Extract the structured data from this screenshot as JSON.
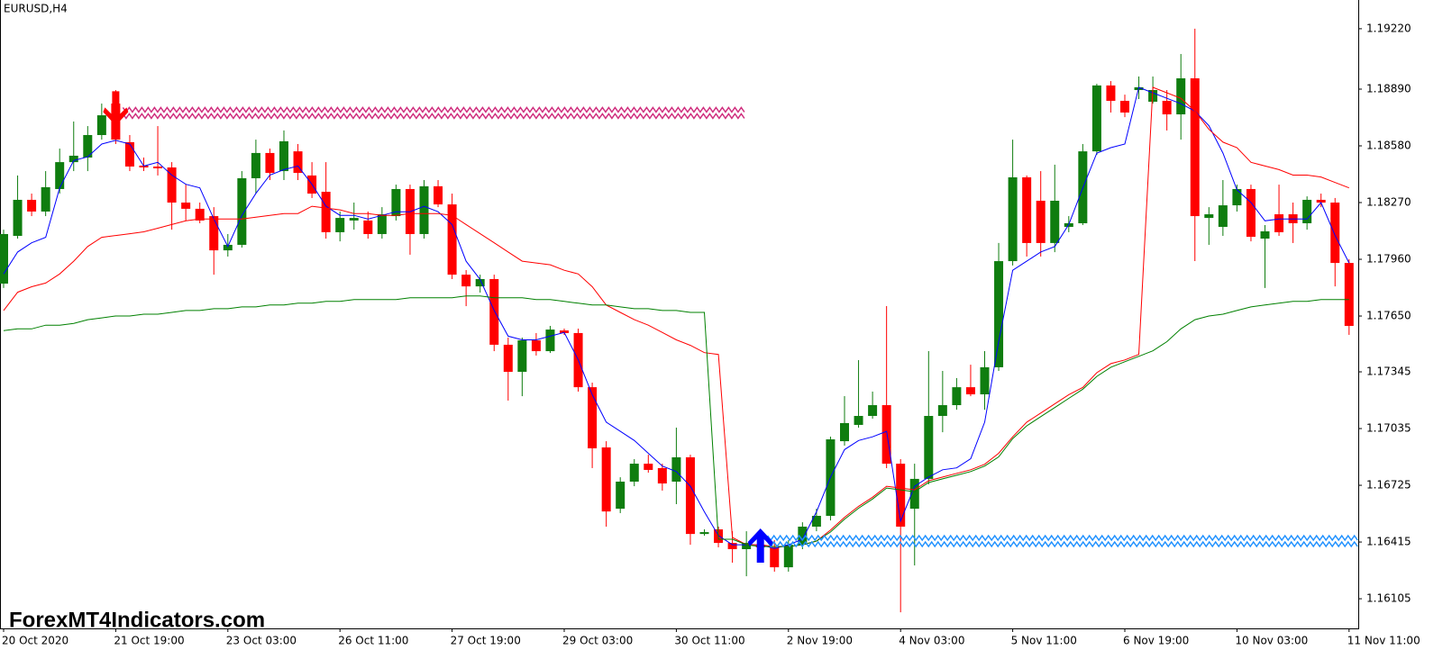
{
  "chart_data": {
    "type": "candlestick",
    "symbol": "EURUSD,H4",
    "watermark": "ForexMT4Indicators.com",
    "categories": [
      "20 Oct 2020",
      null,
      null,
      null,
      null,
      null,
      null,
      null,
      "21 Oct 19:00",
      null,
      null,
      null,
      null,
      null,
      null,
      null,
      "23 Oct 03:00",
      null,
      null,
      null,
      null,
      null,
      null,
      null,
      "26 Oct 11:00",
      null,
      null,
      null,
      null,
      null,
      null,
      null,
      "27 Oct 19:00",
      null,
      null,
      null,
      null,
      null,
      null,
      null,
      "29 Oct 03:00",
      null,
      null,
      null,
      null,
      null,
      null,
      null,
      "30 Oct 11:00",
      null,
      null,
      null,
      null,
      null,
      null,
      null,
      "2 Nov 19:00",
      null,
      null,
      null,
      null,
      null,
      null,
      null,
      "4 Nov 03:00",
      null,
      null,
      null,
      null,
      null,
      null,
      null,
      "5 Nov 11:00",
      null,
      null,
      null,
      null,
      null,
      null,
      null,
      "6 Nov 19:00",
      null,
      null,
      null,
      null,
      null,
      null,
      null,
      "10 Nov 03:00",
      null,
      null,
      null,
      null,
      null,
      null,
      null,
      "11 Nov 11:00"
    ],
    "open": [
      1.17827,
      1.18088,
      1.18285,
      1.18221,
      1.18344,
      1.18491,
      1.18516,
      1.18639,
      1.18811,
      1.186,
      1.18472,
      1.18467,
      1.18462,
      1.1827,
      1.18236,
      1.18196,
      1.18009,
      1.18039,
      1.18403,
      1.18541,
      1.18442,
      1.1855,
      1.18418,
      1.18329,
      1.18108,
      1.18172,
      1.18172,
      1.18098,
      1.18196,
      1.18344,
      1.18098,
      1.18359,
      1.1826,
      1.17876,
      1.17812,
      1.17852,
      1.17493,
      1.17345,
      1.17517,
      1.17458,
      1.17571,
      1.17557,
      1.17261,
      1.16932,
      1.16597,
      1.16745,
      1.16843,
      1.16819,
      1.16745,
      1.16878,
      1.16459,
      1.16484,
      1.1641,
      1.16376,
      1.164,
      1.16386,
      1.16277,
      1.164,
      1.16499,
      1.16558,
      1.16966,
      1.17055,
      1.17104,
      1.17163,
      1.16843,
      1.16597,
      1.1676,
      1.17104,
      1.17163,
      1.17261,
      1.17222,
      1.1737,
      1.1795,
      1.18408,
      1.1828,
      1.18049,
      1.18137,
      1.18157,
      1.1855,
      1.1891,
      1.18826,
      1.18885,
      1.18821,
      1.18826,
      1.18752,
      1.18949,
      1.18186,
      1.18137,
      1.18255,
      1.18344,
      1.18073,
      1.18206,
      1.18206,
      1.18157,
      1.18285,
      1.1827,
      1.1794
    ],
    "high": [
      1.18122,
      1.18418,
      1.18319,
      1.18442,
      1.18565,
      1.18713,
      1.18688,
      1.18811,
      1.18885,
      1.18639,
      1.18516,
      1.18688,
      1.18491,
      1.18368,
      1.1827,
      1.18245,
      1.18098,
      1.18442,
      1.18614,
      1.18565,
      1.18664,
      1.1859,
      1.18491,
      1.18491,
      1.18221,
      1.1827,
      1.18221,
      1.18245,
      1.18368,
      1.18368,
      1.18393,
      1.18393,
      1.18319,
      1.17901,
      1.17876,
      1.17876,
      1.17532,
      1.17532,
      1.17557,
      1.17596,
      1.17581,
      1.17581,
      1.17286,
      1.16966,
      1.16769,
      1.16868,
      1.16892,
      1.16843,
      1.1704,
      1.16892,
      1.16484,
      1.16499,
      1.16474,
      1.16474,
      1.1645,
      1.16425,
      1.16425,
      1.16523,
      1.16597,
      1.16991,
      1.17212,
      1.17409,
      1.17237,
      1.17704,
      1.16868,
      1.16843,
      1.17458,
      1.1735,
      1.17311,
      1.17384,
      1.17458,
      1.18049,
      1.18614,
      1.18418,
      1.18442,
      1.18477,
      1.18196,
      1.1859,
      1.18919,
      1.18934,
      1.1886,
      1.18959,
      1.18959,
      1.18885,
      1.19082,
      1.1922,
      1.18245,
      1.18393,
      1.18368,
      1.18368,
      1.18147,
      1.18368,
      1.1827,
      1.18304,
      1.18319,
      1.18295,
      1.1796
    ],
    "low": [
      1.17803,
      1.18073,
      1.18196,
      1.18196,
      1.18319,
      1.18442,
      1.18442,
      1.18614,
      1.1859,
      1.18442,
      1.18442,
      1.18418,
      1.18122,
      1.18172,
      1.18157,
      1.17876,
      1.17975,
      1.18024,
      1.18319,
      1.18393,
      1.18393,
      1.18393,
      1.18295,
      1.18073,
      1.18058,
      1.18122,
      1.18073,
      1.18073,
      1.18172,
      1.17985,
      1.18073,
      1.18245,
      1.17852,
      1.17704,
      1.17778,
      1.17458,
      1.17188,
      1.17212,
      1.17434,
      1.17448,
      1.17547,
      1.17237,
      1.16819,
      1.16499,
      1.16573,
      1.1672,
      1.16794,
      1.16696,
      1.16622,
      1.164,
      1.1645,
      1.16386,
      1.16302,
      1.16228,
      1.16351,
      1.16253,
      1.16253,
      1.16376,
      1.16474,
      1.16533,
      1.16942,
      1.1704,
      1.17089,
      1.16819,
      1.16031,
      1.16287,
      1.1673,
      1.17015,
      1.17138,
      1.17212,
      1.17138,
      1.1735,
      1.17926,
      1.17975,
      1.17975,
      1.17999,
      1.18108,
      1.18147,
      1.18531,
      1.18762,
      1.18737,
      1.18836,
      1.18811,
      1.18664,
      1.18614,
      1.1795,
      1.18039,
      1.18088,
      1.18221,
      1.18058,
      1.17803,
      1.18088,
      1.18049,
      1.18122,
      1.18245,
      1.17812,
      1.17547
    ],
    "close": [
      1.18098,
      1.18285,
      1.18221,
      1.18354,
      1.18491,
      1.18526,
      1.18639,
      1.18747,
      1.18614,
      1.18467,
      1.18462,
      1.18457,
      1.1827,
      1.18236,
      1.18172,
      1.18009,
      1.18039,
      1.18403,
      1.18541,
      1.18432,
      1.18605,
      1.18432,
      1.18319,
      1.18108,
      1.18186,
      1.18186,
      1.18098,
      1.18206,
      1.18344,
      1.18098,
      1.18359,
      1.1826,
      1.17876,
      1.17812,
      1.17852,
      1.17493,
      1.17345,
      1.17517,
      1.17458,
      1.17576,
      1.17557,
      1.17261,
      1.16927,
      1.16582,
      1.16745,
      1.16843,
      1.16809,
      1.16735,
      1.16878,
      1.16459,
      1.16469,
      1.1641,
      1.16376,
      1.1641,
      1.16386,
      1.16277,
      1.164,
      1.16499,
      1.16558,
      1.16976,
      1.17065,
      1.17104,
      1.17163,
      1.16843,
      1.16499,
      1.1676,
      1.17104,
      1.17163,
      1.17261,
      1.17222,
      1.1737,
      1.1795,
      1.18408,
      1.18049,
      1.18049,
      1.1828,
      1.18157,
      1.1855,
      1.1891,
      1.18826,
      1.18762,
      1.189,
      1.18885,
      1.18752,
      1.18949,
      1.18196,
      1.18206,
      1.18255,
      1.18344,
      1.18083,
      1.18113,
      1.18108,
      1.18157,
      1.18285,
      1.1827,
      1.1794,
      1.17596
    ],
    "up_color": "#0f7d0f",
    "down_color": "#ff0000",
    "lines": [
      {
        "color": "#0000ff",
        "values": [
          1.1788,
          1.18,
          1.1805,
          1.1808,
          1.1835,
          1.185,
          1.1852,
          1.1859,
          1.1861,
          1.1859,
          1.1847,
          1.1849,
          1.1842,
          1.1837,
          1.1835,
          1.1818,
          1.1803,
          1.182,
          1.1832,
          1.1842,
          1.1845,
          1.1847,
          1.1837,
          1.1825,
          1.182,
          1.182,
          1.1818,
          1.182,
          1.1822,
          1.1822,
          1.1825,
          1.1822,
          1.1815,
          1.1795,
          1.1785,
          1.1768,
          1.1754,
          1.1752,
          1.1752,
          1.1754,
          1.1756,
          1.1741,
          1.1722,
          1.1707,
          1.1702,
          1.1697,
          1.169,
          1.1683,
          1.168,
          1.1672,
          1.1658,
          1.1645,
          1.164,
          1.164,
          1.164,
          1.1638,
          1.164,
          1.1643,
          1.1658,
          1.1677,
          1.1692,
          1.1697,
          1.1699,
          1.1702,
          1.1653,
          1.1672,
          1.1677,
          1.1681,
          1.1682,
          1.1687,
          1.1707,
          1.1751,
          1.179,
          1.1795,
          1.18,
          1.1803,
          1.1815,
          1.1835,
          1.1854,
          1.1857,
          1.1859,
          1.189,
          1.1887,
          1.1884,
          1.1881,
          1.1877,
          1.1869,
          1.1854,
          1.1834,
          1.1827,
          1.1817,
          1.1818,
          1.1818,
          1.1818,
          1.1827,
          1.1809,
          1.1794
        ]
      },
      {
        "color": "#ff0000",
        "values": [
          1.1768,
          1.1778,
          1.1781,
          1.1783,
          1.1788,
          1.1795,
          1.1803,
          1.1808,
          1.1809,
          1.181,
          1.1811,
          1.1813,
          1.1815,
          1.1817,
          1.1818,
          1.1818,
          1.1818,
          1.1818,
          1.1819,
          1.182,
          1.1821,
          1.1821,
          1.1825,
          1.1824,
          1.1823,
          1.1821,
          1.1821,
          1.182,
          1.182,
          1.1821,
          1.1821,
          1.1821,
          1.182,
          1.1815,
          1.181,
          1.1805,
          1.18,
          1.1795,
          1.1794,
          1.1793,
          1.179,
          1.1788,
          1.1781,
          1.1771,
          1.1767,
          1.1763,
          1.176,
          1.1756,
          1.1752,
          1.1749,
          1.1745,
          1.1744,
          1.1644,
          1.164,
          1.164,
          1.1639,
          1.1639,
          1.164,
          1.1642,
          1.1648,
          1.1655,
          1.1661,
          1.1666,
          1.1672,
          1.1671,
          1.167,
          1.1675,
          1.1677,
          1.1679,
          1.1681,
          1.1684,
          1.169,
          1.1699,
          1.1707,
          1.1712,
          1.1717,
          1.1722,
          1.1726,
          1.1734,
          1.1739,
          1.1741,
          1.1744,
          1.189,
          1.1887,
          1.1884,
          1.1877,
          1.1867,
          1.186,
          1.1857,
          1.1849,
          1.1847,
          1.1845,
          1.1842,
          1.1842,
          1.1841,
          1.1838,
          1.1835
        ]
      },
      {
        "color": "#008000",
        "values": [
          1.1757,
          1.1758,
          1.1758,
          1.176,
          1.176,
          1.1761,
          1.1763,
          1.1764,
          1.1765,
          1.1765,
          1.1766,
          1.1766,
          1.1767,
          1.1768,
          1.1768,
          1.1769,
          1.1769,
          1.177,
          1.177,
          1.1771,
          1.1771,
          1.1772,
          1.1772,
          1.1773,
          1.1773,
          1.1774,
          1.1774,
          1.1774,
          1.1774,
          1.1775,
          1.1775,
          1.1775,
          1.1775,
          1.1776,
          1.1776,
          1.1775,
          1.1775,
          1.1775,
          1.1774,
          1.1774,
          1.1773,
          1.1772,
          1.1771,
          1.1771,
          1.177,
          1.1769,
          1.1769,
          1.1768,
          1.1768,
          1.1767,
          1.1767,
          1.1643,
          1.1643,
          1.164,
          1.1639,
          1.1639,
          1.1639,
          1.164,
          1.1642,
          1.1647,
          1.1654,
          1.166,
          1.1665,
          1.1671,
          1.167,
          1.1669,
          1.1674,
          1.1676,
          1.1678,
          1.168,
          1.1683,
          1.1688,
          1.1698,
          1.1705,
          1.171,
          1.1715,
          1.172,
          1.1725,
          1.1732,
          1.1737,
          1.174,
          1.1743,
          1.1746,
          1.1751,
          1.1758,
          1.1763,
          1.1765,
          1.1766,
          1.1768,
          1.177,
          1.1771,
          1.1772,
          1.1773,
          1.1773,
          1.1774,
          1.1774,
          1.1774
        ]
      }
    ],
    "signals": [
      {
        "side": "sell",
        "index": 8,
        "end": 53,
        "value": 1.1876,
        "color": "#d0307f"
      },
      {
        "side": "buy",
        "index": 54,
        "end": 96,
        "value": 1.1642,
        "color": "#1e90ff"
      }
    ],
    "ylim": [
      1.15943,
      1.19377
    ],
    "yticks": [
      {
        "value": 1.1922,
        "label": "1.19220"
      },
      {
        "value": 1.1889,
        "label": "1.18890"
      },
      {
        "value": 1.1858,
        "label": "1.18580"
      },
      {
        "value": 1.1827,
        "label": "1.18270"
      },
      {
        "value": 1.1796,
        "label": "1.17960"
      },
      {
        "value": 1.1765,
        "label": "1.17650"
      },
      {
        "value": 1.17345,
        "label": "1.17345"
      },
      {
        "value": 1.17035,
        "label": "1.17035"
      },
      {
        "value": 1.16725,
        "label": "1.16725"
      },
      {
        "value": 1.16415,
        "label": "1.16415"
      },
      {
        "value": 1.16105,
        "label": "1.16105"
      }
    ]
  }
}
